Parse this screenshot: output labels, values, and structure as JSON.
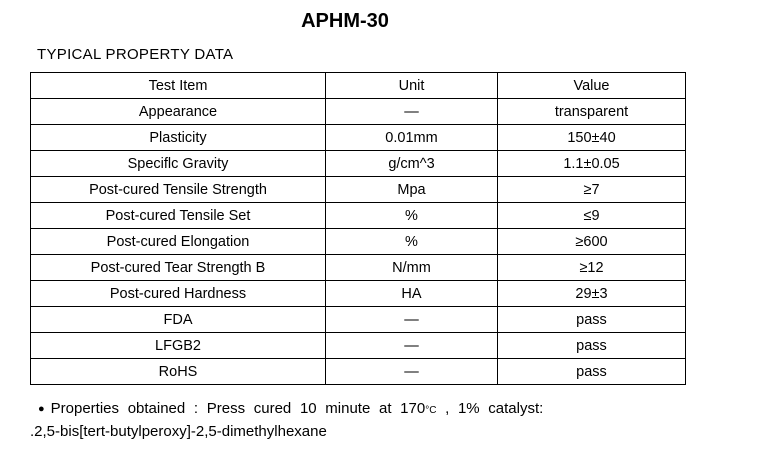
{
  "title": "APHM-30",
  "section_heading": "TYPICAL PROPERTY DATA",
  "table": {
    "columns": [
      "Test Item",
      "Unit",
      "Value"
    ],
    "rows": [
      {
        "item": "Appearance",
        "unit": "—",
        "value": "transparent"
      },
      {
        "item": "Plasticity",
        "unit": "0.01mm",
        "value": "150±40"
      },
      {
        "item": "Speciflc Gravity",
        "unit": "g/cm^3",
        "value": "1.1±0.05"
      },
      {
        "item": "Post-cured Tensile Strength",
        "unit": "Mpa",
        "value": "≥7"
      },
      {
        "item": "Post-cured Tensile Set",
        "unit": "%",
        "value": "≤9"
      },
      {
        "item": "Post-cured Elongation",
        "unit": "%",
        "value": "≥600"
      },
      {
        "item": "Post-cured Tear Strength B",
        "unit": "N/mm",
        "value": "≥12"
      },
      {
        "item": "Post-cured Hardness",
        "unit": "HA",
        "value": "29±3"
      },
      {
        "item": "FDA",
        "unit": "—",
        "value": "pass"
      },
      {
        "item": "LFGB2",
        "unit": "—",
        "value": "pass"
      },
      {
        "item": "RoHS",
        "unit": "—",
        "value": "pass"
      }
    ]
  },
  "footnote": {
    "bullet": "●",
    "line1_prefix": "Properties obtained : Press cured 10 minute at 170",
    "line1_degree": "°C",
    "line1_suffix": " , 1% catalyst:",
    "line2": ".2,5-bis[tert-butylperoxy]-2,5-dimethylhexane"
  },
  "colors": {
    "text": "#000000",
    "background": "#ffffff",
    "border": "#000000"
  }
}
